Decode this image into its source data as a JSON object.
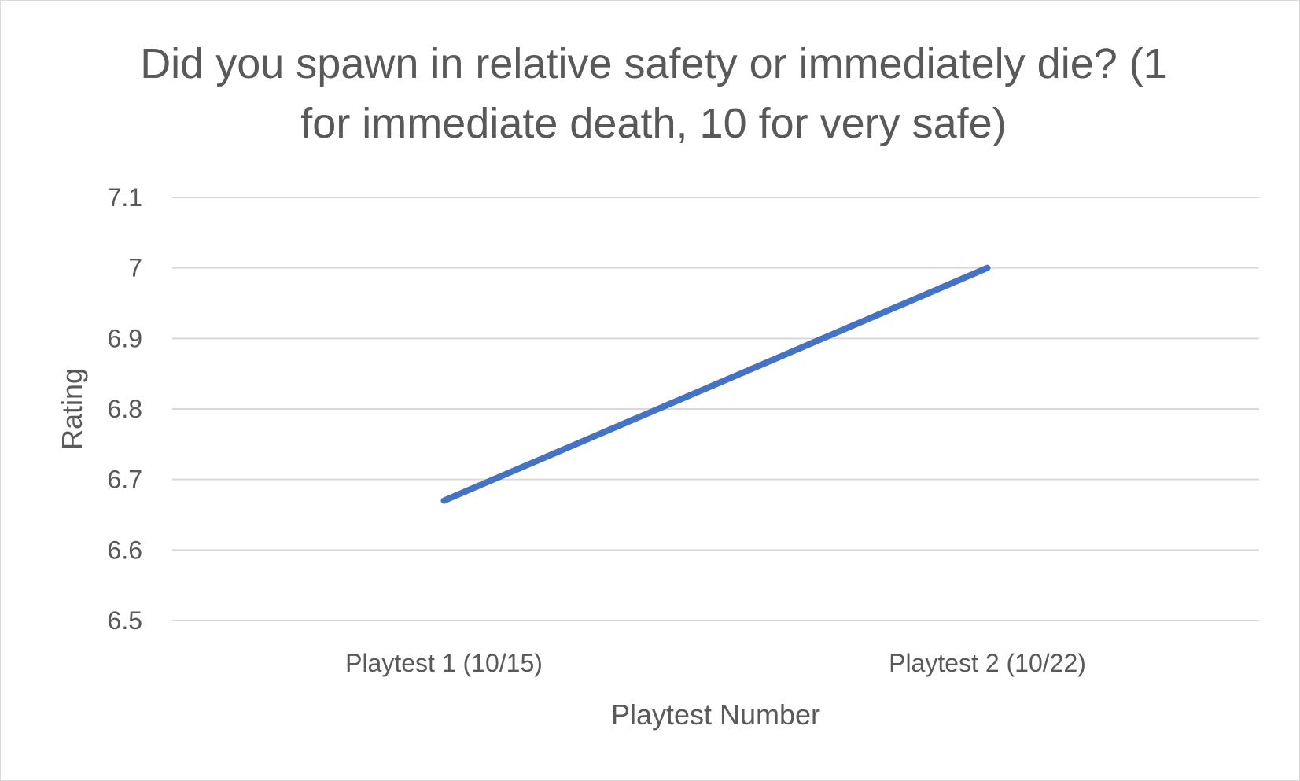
{
  "chart_data": {
    "type": "line",
    "title": "Did you spawn in relative safety or immediately die? (1 for immediate death, 10 for very safe)",
    "xlabel": "Playtest Number",
    "ylabel": "Rating",
    "categories": [
      "Playtest 1 (10/15)",
      "Playtest 2 (10/22)"
    ],
    "series": [
      {
        "values": [
          6.67,
          7.0
        ]
      }
    ],
    "ylim": [
      6.5,
      7.1
    ],
    "yticks": [
      6.5,
      6.6,
      6.7,
      6.8,
      6.9,
      7,
      7.1
    ],
    "ytick_labels": [
      "6.5",
      "6.6",
      "6.7",
      "6.8",
      "6.9",
      "7",
      "7.1"
    ],
    "grid": true,
    "legend": "none",
    "colors": {
      "series_line": "#4472c4",
      "gridline": "#d9d9d9",
      "text": "#595959"
    }
  }
}
